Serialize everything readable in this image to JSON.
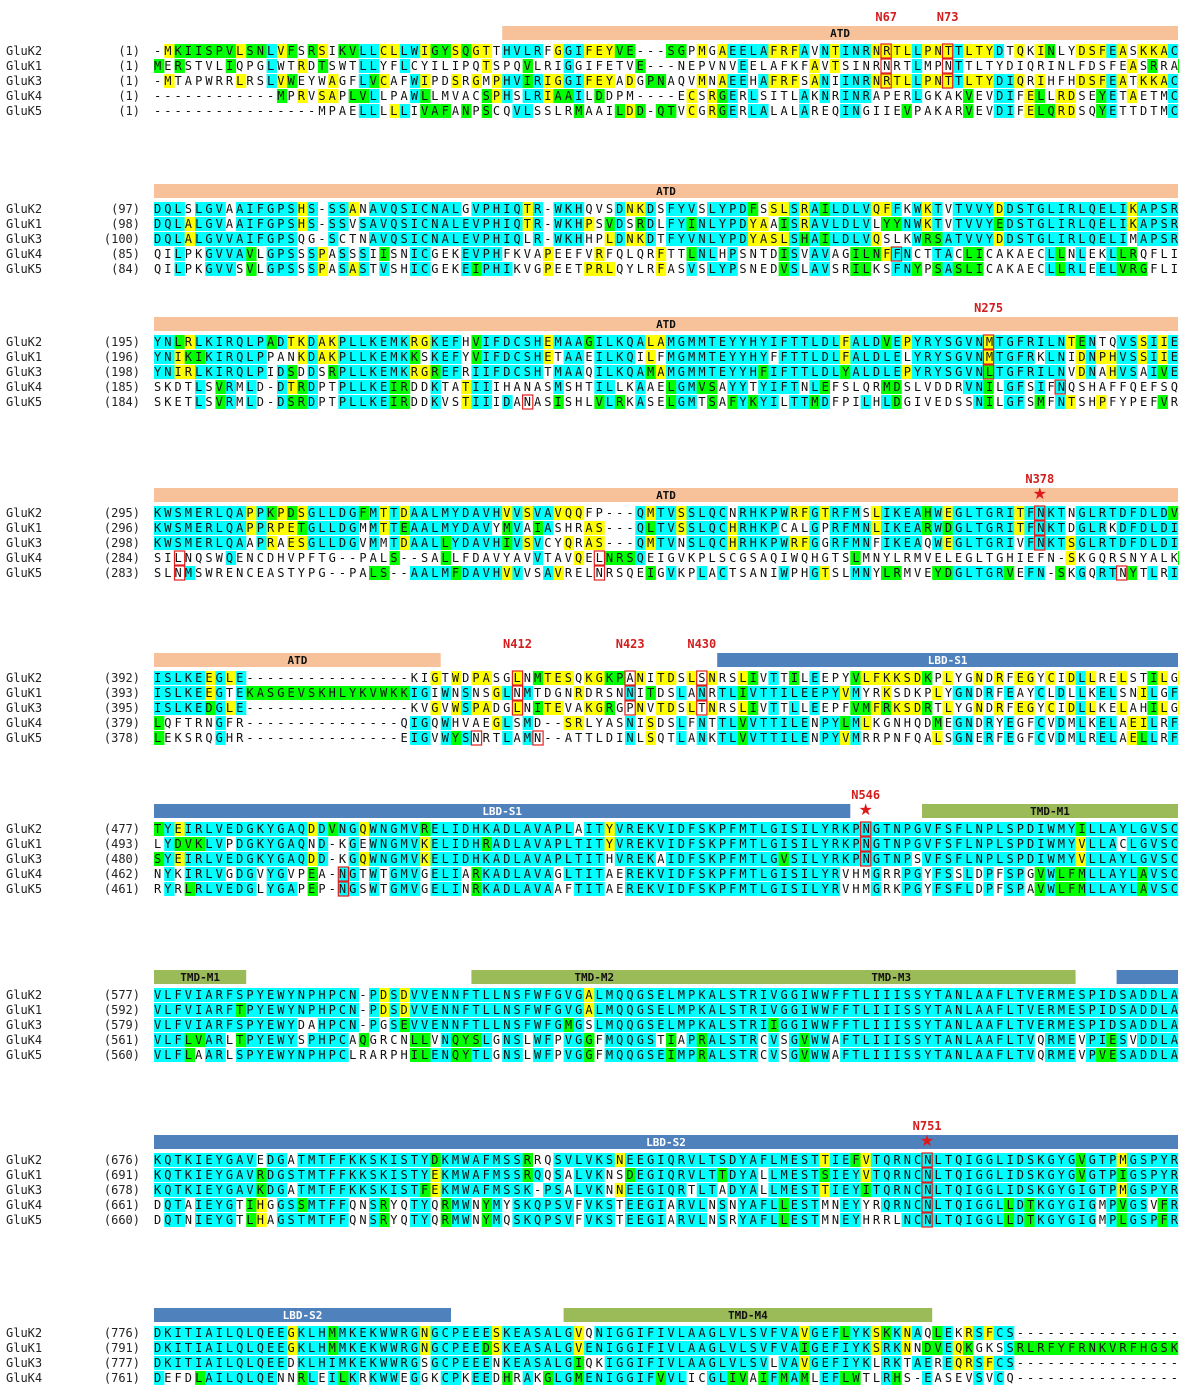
{
  "colors": {
    "identical": "#00ffff",
    "conserved": "#ffff00",
    "similar": "#00ff00",
    "atd_bar": "#f7c29a",
    "lbd_bar": "#4f81bd",
    "tmd_bar": "#9bbb59",
    "site_text": "#d21e1e",
    "site_box": "#e02020"
  },
  "blocks": [
    {
      "starts": [
        "(1)",
        "(1)",
        "(1)",
        "(1)",
        "(1)"
      ],
      "seqs": [
        "-MKIISPVLSNLVFSRSIKVLLCLLWIGYSQGTTHVLRFGGIFEYVE---SGPMGAEELAFRFAVNTINRNRTLLPNTTLTYDTQKINLYDSFEASKKAC",
        "MERSTVLIQPGLWTRDTSWTLLYFLCYILIPQTSPQVLRIGGIFETVE---NEPVNVEELAFKFAVTSINRNRTLMPNTTLTYDIQRINLFDSFEASRRAC",
        "-MTAPWRRLRSLVWEYWAGFLVCAFWIPDSRGMPHVIRIGGIFEYADGPNAQVMNAEEHAFRFSANIINRNRTLLPNTTLTYDIQRIHFHDSFEATKKAC",
        "------------MPRVSAPLVLLPAWLLMVACSPHSLRIAAILDDPM----ECSRGERLSITLAKNRINRAPERLGKAKVEVDIFELLRDSEYETAETMC",
        "----------------MPAELLLLLIVAFANPSCQVLSSLRMAAILDD-QTVCGRGERLALALAREQINGIIEVPAKARVEVDIFELQRDSQYETTDTMC"
      ],
      "bars": [
        {
          "label": "ATD",
          "kind": "atd"
        }
      ],
      "sites": [
        {
          "label": "N67",
          "star": false
        },
        {
          "label": "N73",
          "star": false
        }
      ]
    },
    {
      "starts": [
        "(97)",
        "(98)",
        "(100)",
        "(85)",
        "(84)"
      ],
      "seqs": [
        "DQLSLGVAAIFGPSHS-SSANAVQSICNALGVPHIQTR-WKHQVSDNKDSFYVSLYPDFSSLSRAILDLVQFFKWKTVTVVYDDSTGLIRLQELIKAPSR",
        "DQLALGVAAIFGPSHS-SSVSAVQSICNALEVPHIQTR-WKHPSVDSRDLFYINLYPDYAAISRAVLDLVLYYNWKTVTVVYEDSTGLIRLQELIKAPSR",
        "DQLALGVVAIFGPSQG-SCTNAVQSICNALEVPHIQLR-WKHHPLDNKDTFYVNLYPDYASLSHAILDLVQSLKWRSATVVYDDSTGLIRLQELIMAPSR",
        "QILPKGVVAVLGPSSSPASSSIISNICGEKEVPHFKVAPEEFVRFQLQRFTTLNLHPSNTDISVAVAGILNFFNCTTACLICAKAECLLNLEKLLRQFLI",
        "QILPKGVVSVLGPSSSPASASTVSHICGEKEIPHIKVGPEETPRLQYLRFASVSLYPSNEDVSLAVSRILKSFNYPSASLICAKAECLLRLEELVRGFLI"
      ],
      "bars": [
        {
          "label": "ATD",
          "kind": "atd"
        }
      ],
      "sites": []
    },
    {
      "starts": [
        "(195)",
        "(196)",
        "(198)",
        "(185)",
        "(184)"
      ],
      "seqs": [
        "YNLRLKIRQLPADTKDAKPLLKEMKRGKEFHVIFDCSHEMAAGILKQALAMGMMTEYYHYIFTTLDLFALDVEPYRYSGVNMTGFRILNTENTQVSSIIE",
        "YNIKIKIRQLPPANKDAKPLLKEMKKSKEFYVIFDCSHETAAEILKQILFMGMMTEYYHYFFTTLDLFALDLELYRYSGVNMTGFRKLNIDNPHVSSIIE",
        "YNIRLKIRQLPIDSDDSRPLLKEMKRGREFRIIFDCSHTMAAQILKQAMAMGMMTEYYHFIFTTLDLYALDLEPYRYSGVNLTGFRILNVDNAHVSAIVE",
        "SKDTLSVRMLD-DTRDPTPLLKEIRDDKTATIIIHANASMSHTILLKAAELGMVSAYYTYIFTNLEFSLQRMDSLVDDRVNILGFSIFNQSHAFFQEFSQ",
        "SKETLSVRMLD-DSRDPTPLLKEIRDDKVSTIIIDANASISHLVLRKASELGMTSAFYKYILTTMDFPILHLDGIVEDSSNILGFSMFNTSHPFYPEFVR"
      ],
      "bars": [
        {
          "label": "ATD",
          "kind": "atd"
        }
      ],
      "sites": [
        {
          "label": "N275",
          "star": false
        }
      ]
    },
    {
      "starts": [
        "(295)",
        "(296)",
        "(298)",
        "(284)",
        "(283)"
      ],
      "seqs": [
        "KWSMERLQAPPKPDSGLLDGFMTTDAALMYDAVHVVSVAVQQFP---QMTVSSLQCNRHKPWRFGTRFMSLIKEAHWEGLTGRITFNKTNGLRTDFDLDV",
        "KWSMERLQAPPRPETGLLDGMMTTEAALMYDAVYMVAIASHRAS---QLTVSSLQCHRHKPCALGPRFMNLIKEARWDGLTGRITFNKTDGLRKDFDLDI",
        "KWSMERLQAAPRAESGLLDGVMMTDAALLYDAVHIVSVCYQRAS---QMTVNSLQCHRHKPWRFGGRFMNFIKEAQWEGLTGRIVFNKTSGLRTDFDLDI",
        "SILNQSWQENCDHVPFTG--PALS--SALLFDAVYAVVTAVQELNRSQEIGVKPLSCGSAQIWQHGTSLMNYLRMVELEGLTGHIEFN-SKGQRSNYALKI",
        "SLNMSWRENCEASTYPG--PALS--AALMFDAVHVVVSAVRELNRSQEIGVKPLACTSANIWPHGTSLMNYLRMVEYDGLTGRVEFN-SKGQRTNYTLRI"
      ],
      "bars": [
        {
          "label": "ATD",
          "kind": "atd"
        }
      ],
      "sites": [
        {
          "label": "N378",
          "star": true
        }
      ]
    },
    {
      "starts": [
        "(392)",
        "(393)",
        "(395)",
        "(379)",
        "(378)"
      ],
      "seqs": [
        "ISLKEEGLE----------------KIGTWDPASGLNMTESQKGKPANITDSLSNRSLIVTTILEEPYVLFKKSDKPLYGNDRFEGYCIDLLRELSTILGF",
        "ISLKEEGTEKASGEVSKHLYKVWKKIGIWNSNSGLNMTDGNRDRSNNITDSLANRTLIVTTILEEPYVMYRKSDKPLYGNDRFEAYCLDLLKELSNILGF",
        "ISLKEDGLE----------------KVGVWSPADGLNITEVAKGRGPNVTDSLTNRSLIVTTLLEEPFVMFRKSDRTLYGNDRFEGYCIDLLKELAHILGF",
        "LQFTRNGFR---------------QIGQWHVAEGLSMD--SRLYASNISDSLFNTTLVVTTILENPYLMLKGNHQDMEGNDRYEGFCVDMLKELAEILRF",
        "LEKSRQGHR---------------EIGVWYSNRTLAMN--ATTLDINLSQTLANKTLVVTTILENPYVMRRPNFQALSGNERFEGFCVDMLRELAELLRF"
      ],
      "bars": [
        {
          "label": "ATD",
          "kind": "atd"
        },
        {
          "label": "LBD-S1",
          "kind": "lbd"
        }
      ],
      "sites": [
        {
          "label": "N412",
          "star": false
        },
        {
          "label": "N423",
          "star": false
        },
        {
          "label": "N430",
          "star": false
        }
      ]
    },
    {
      "starts": [
        "(477)",
        "(493)",
        "(480)",
        "(462)",
        "(461)"
      ],
      "seqs": [
        "TYEIRLVEDGKYGAQDDVNGQWNGMVRELIDHKADLAVAPLAITYVREKVIDFSKPFMTLGISILYRKPNGTNPGVFSFLNPLSPDIWMYILLAYLGVSC",
        "LYDVKLVPDGKYGAQND-KGEWNGMVKELIDHRADLAVAPLTITYVREKVIDFSKPFMTLGISILYRKPNGTNPGVFSFLNPLSPDIWMYVLLACLGVSC",
        "SYEIRLVEDGKYGAQDD-KGQWNGMVKELIDHKADLAVAPLTITHVREKAIDFSKPFMTLGVSILYRKPNGTNPSVFSFLNPLSPDIWMYVLLAYLGVSC",
        "NYKIRLVGDGVYGVPEA-NGTWTGMVGELIARKADLAVAGLTITAEREKVIDFSKPFMTLGISILYRVHMGRRPGYFSSLDPFSPGVWLFMLLAYLAVSC",
        "RYRLRLVEDGLYGAPEP-NGSWTGMVGELINRKADLAVAAFTITAEREKVIDFSKPFMTLGISILYRVHMGRKPGYFSFLDPFSPAVWLFMLLAYLAVSC"
      ],
      "bars": [
        {
          "label": "LBD-S1",
          "kind": "lbd"
        },
        {
          "label": "TMD-M1",
          "kind": "tmd"
        }
      ],
      "sites": [
        {
          "label": "N546",
          "star": true
        }
      ]
    },
    {
      "starts": [
        "(577)",
        "(592)",
        "(579)",
        "(561)",
        "(560)"
      ],
      "seqs": [
        "VLFVIARFSPYEWYNPHPCN-PDSDVVENNFTLLNSFWFGVGALMQQGSELMPKALSTRIVGGIWWFFTLIIISSYTANLAAFLTVERMESPIDSADDLA",
        "VLFVIARFTPYEWYNPHPCN-PDSDVVENNFTLLNSFWFGVGALMQQGSELMPKALSTRIVGGIWWFFTLIIISSYTANLAAFLTVERMESPIDSADDLA",
        "VLFVIARFSPYEWYDAHPCN-PGSEVVENNFTLLNSFWFGMGSLMQQGSELMPKALSTRIIGGIWWFFTLIIISSYTANLAAFLTVERMESPIDSADDLA",
        "VLFLVARLTPYEWYSPHPCAQGRCNLLVNQYSLGNSLWFPVGGFMQQGSTIAPRALSTRCVSGVWWAFTLIIISSYTANLAAFLTVQRMEVPIESVDDLA",
        "VLFLAARLSPYEWYNPHPCLRARPHILENQYTLGNSLWFPVGGFMQQGSEIMPRALSTRCVSGVWWAFTLIIISSYTANLAAFLTVQRMEVPVESADDLA"
      ],
      "bars": [
        {
          "label": "TMD-M1",
          "kind": "tmd"
        },
        {
          "label": "TMD-M2",
          "kind": "tmd"
        },
        {
          "label": "TMD-M3",
          "kind": "tmd"
        },
        {
          "label": "",
          "kind": "lbd"
        }
      ],
      "sites": []
    },
    {
      "starts": [
        "(676)",
        "(691)",
        "(678)",
        "(661)",
        "(660)"
      ],
      "seqs": [
        "KQTKIEYGAVEDGATMTFFKKSKISTYDKMWAFMSSRRQSVLVKSNEEGIQRVLTSDYAFLMESTTIEFVTQRNCNLTQIGGLIDSKGYGVGTPMGSPYR",
        "KQTKIEYGAVRDGSTMTFFKKSKISTYEKMWAFMSSRQQSALVKNSDEGIQRVLTTDYALLMESTSIEYVTQRNCNLTQIGGLIDSKGYGVGTPIGSPYR",
        "KQTKIEYGAVKDGATMTFFKKSKISTFEKMWAFMSSK-PSALVKNNEEGIQRTLTADYALLMESTTIEYITQRNCNLTQIGGLIDSKGYGIGTPMGSPYR",
        "DQTAIEYGTIHGGSSMTFFQNSRYQTYQRMWNYMYSKQPSVFVKSTEEGIARVLNSNYAFLLESTMNEYYRQRNCNLTQIGGLLDTKGYGIGMPVGSVFR",
        "DQTNIEYGTLHAGSTMTFFQNSRYQTYQRMWNYMQSKQPSVFVKSTEEGIARVLNSRYAFLLESTMNEYHRRLNCNLTQIGGLLDTKGYGIGMPLGSPFR"
      ],
      "bars": [
        {
          "label": "LBD-S2",
          "kind": "lbd"
        }
      ],
      "sites": [
        {
          "label": "N751",
          "star": true
        }
      ]
    },
    {
      "starts": [
        "(776)",
        "(791)",
        "(777)",
        "(761)",
        "(760)"
      ],
      "seqs": [
        "DKITIAILQLQEEGKLHMMKEKWWRGNGCPEEESKEASALGVQNIGGIFIVLAAGLVLSVFVAVGEFLYKSKKNAQLEKRSFCS----------------",
        "DKITIAILQLQEEGKLHMMKEKWWRGNGCPEEDSKEASALGVENIGGIFIVLAAGLVLSVFVAIGEFIYKSRKNNDVEQKGKSSRLRFYFRNKVRFHGSK",
        "DKITIAILQLQEEDKLHIMKEKWWRGSGCPEEENKEASALGIQKIGGIFIVLAAGLVLSVLVAVGEFIYKLRKTAEREQRSFCS----------------",
        "DEFDLAILQLQENNRLEILKRKWWEGGKCPKEEDHRAKGLGMENIGGIFVVLICGLIVAIFMAMLEFLWTLRHS-EASEVSVCQ----------------",
        "DEITLAILQLQEENRLEILKRKWWEGGRCPKEEDHRAKGLGMENIGGIFVVLICGLIIAVFVAMMEFIWSTRRSAESEEVSVCQ----------------"
      ],
      "bars": [
        {
          "label": "LBD-S2",
          "kind": "lbd"
        },
        {
          "label": "TMD-M4",
          "kind": "tmd"
        }
      ],
      "sites": []
    }
  ],
  "names": [
    "GluK2",
    "GluK1",
    "GluK3",
    "GluK4",
    "GluK5"
  ]
}
